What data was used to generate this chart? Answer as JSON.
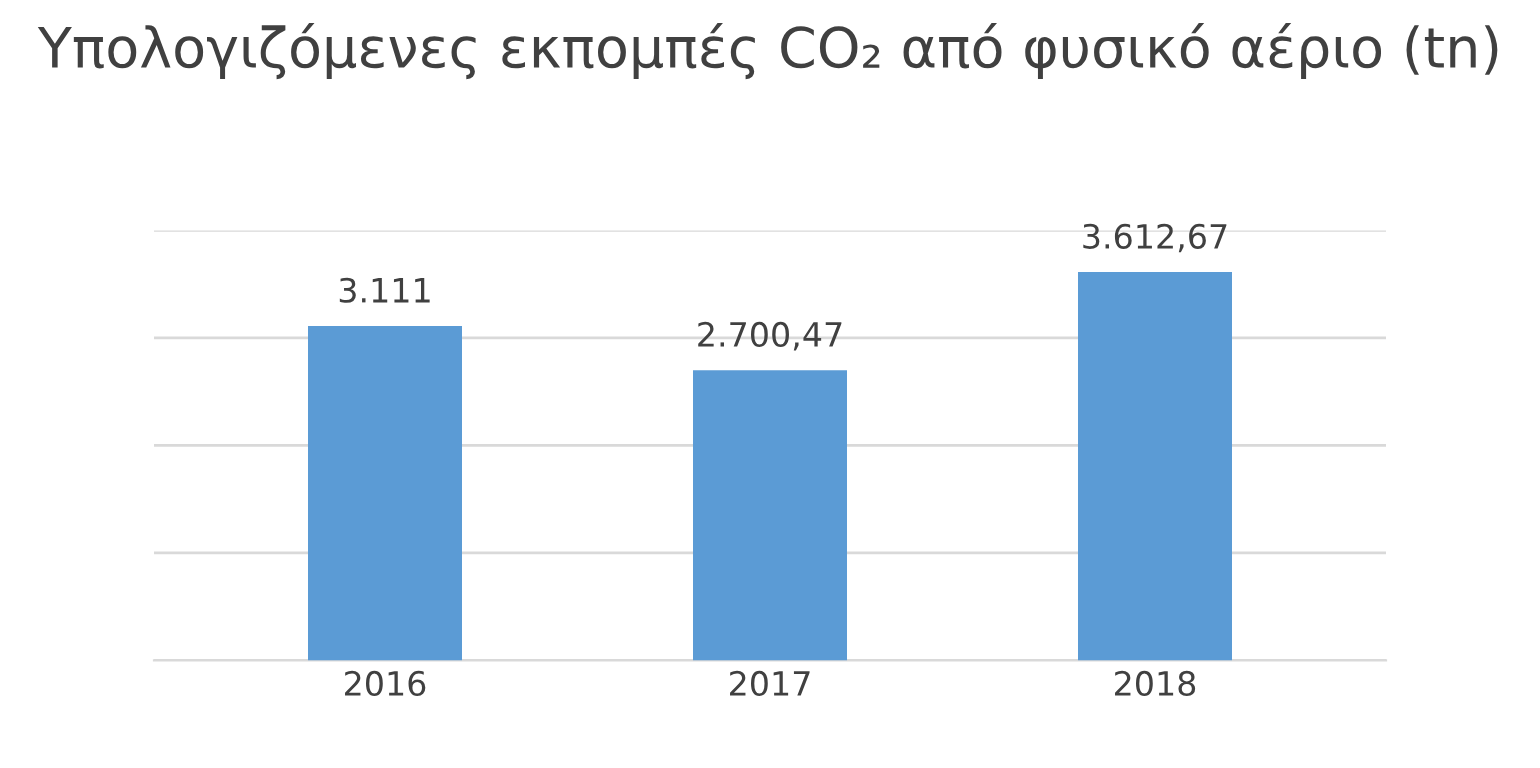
{
  "chart_data": {
    "type": "bar",
    "title": "Υπολογιζόμενες εκπομπές CO₂ από φυσικό αέριο (tn)",
    "categories": [
      "2016",
      "2017",
      "2018"
    ],
    "values": [
      3111,
      2700.47,
      3612.67
    ],
    "value_labels": [
      "3.111",
      "2.700,47",
      "3.612,67"
    ],
    "color": "#5b9bd5",
    "ylim": [
      0,
      4000
    ],
    "yticks": [
      {
        "value": 0,
        "label": null
      },
      {
        "value": 1000,
        "label": null
      },
      {
        "value": 2000,
        "label": null
      },
      {
        "value": 3000,
        "label": null
      },
      {
        "value": 4000,
        "label": null
      }
    ],
    "grid": "y"
  }
}
